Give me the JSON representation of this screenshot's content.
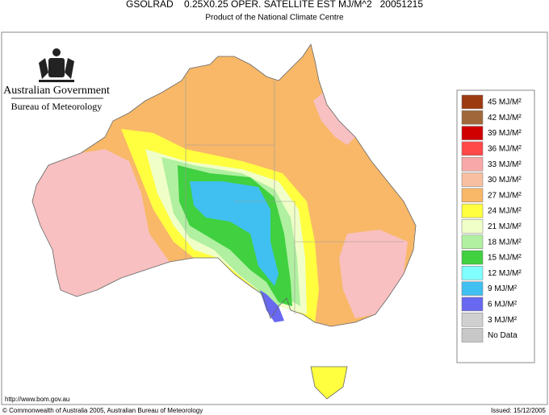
{
  "header": {
    "title": "GSOLRAD    0.25X0.25 OPER. SATELLITE EST MJ/M^2   20051215",
    "subtitle": "Product of the National Climate Centre"
  },
  "branding": {
    "government": "Australian Government",
    "bureau": "Bureau of Meteorology"
  },
  "legend": [
    {
      "label": "45 MJ/M²",
      "color": "#9c3a10"
    },
    {
      "label": "42 MJ/M²",
      "color": "#a0683a"
    },
    {
      "label": "39 MJ/M²",
      "color": "#d00000"
    },
    {
      "label": "36 MJ/M²",
      "color": "#ff4848"
    },
    {
      "label": "33 MJ/M²",
      "color": "#f8a8a8"
    },
    {
      "label": "30 MJ/M²",
      "color": "#f8c0a0"
    },
    {
      "label": "27 MJ/M²",
      "color": "#f8b868"
    },
    {
      "label": "24 MJ/M²",
      "color": "#ffff40"
    },
    {
      "label": "21 MJ/M²",
      "color": "#f0ffc8"
    },
    {
      "label": "18 MJ/M²",
      "color": "#b0f0a0"
    },
    {
      "label": "15 MJ/M²",
      "color": "#40d040"
    },
    {
      "label": "12 MJ/M²",
      "color": "#80ffff"
    },
    {
      "label": "9 MJ/M²",
      "color": "#40c0f0"
    },
    {
      "label": "6 MJ/M²",
      "color": "#6868f0"
    },
    {
      "label": "3 MJ/M²",
      "color": "#d0d0d0"
    },
    {
      "label": "No Data",
      "color": "#c8c8c8"
    }
  ],
  "footer": {
    "url": "http://www.bom.gov.au",
    "copyright": "© Commonwealth of Australia 2005, Australian Bureau of Meteorology",
    "issued": "Issued: 15/12/2005"
  }
}
